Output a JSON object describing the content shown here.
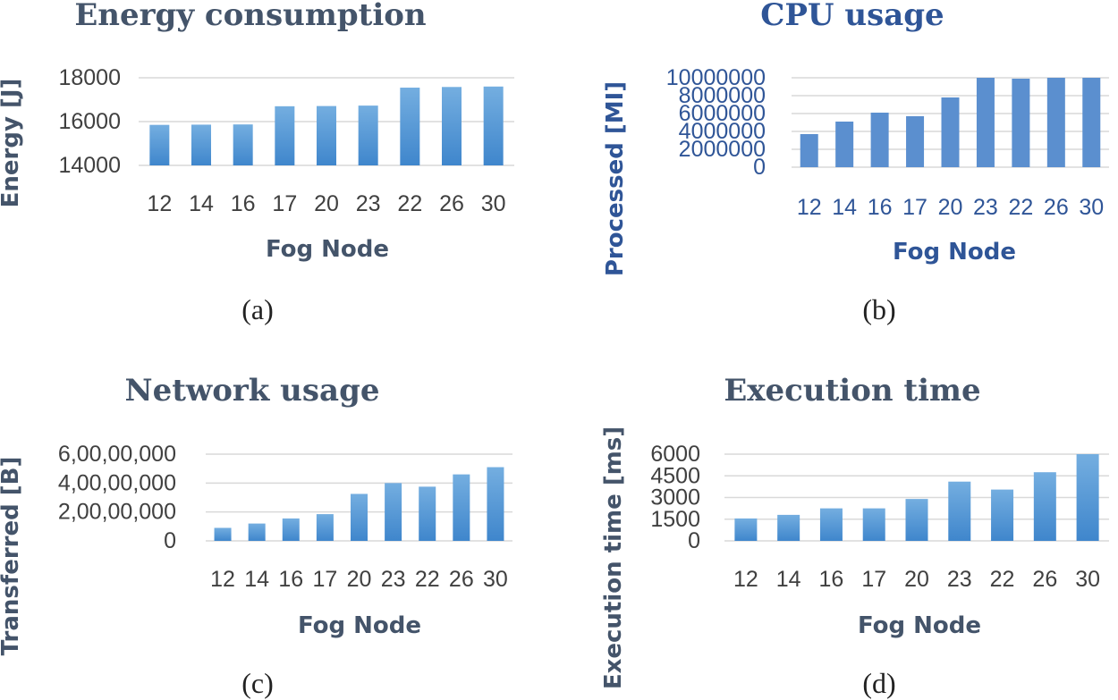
{
  "colors": {
    "bar_top": "#74aee0",
    "bar_bottom": "#3f86cc",
    "bar_solid": "#5b8fcf",
    "grid": "#d9d9d9"
  },
  "chart_data": [
    {
      "id": "energy",
      "type": "bar",
      "title": "Energy consumption",
      "xlabel": "Fog Node",
      "ylabel": "Energy [J]",
      "caption": "(a)",
      "categories": [
        "12",
        "14",
        "16",
        "17",
        "20",
        "23",
        "22",
        "26",
        "30"
      ],
      "values": [
        15850,
        15860,
        15870,
        16700,
        16710,
        16730,
        17550,
        17580,
        17600
      ],
      "ylim": [
        14000,
        18000
      ],
      "yticks": [
        14000,
        16000,
        18000
      ],
      "ytick_labels": [
        "14000",
        "16000",
        "18000"
      ],
      "grid": true
    },
    {
      "id": "cpu",
      "type": "bar",
      "title": "CPU usage",
      "xlabel": "Fog Node",
      "ylabel": "Processed [MI]",
      "caption": "(b)",
      "categories": [
        "12",
        "14",
        "16",
        "17",
        "20",
        "23",
        "22",
        "26",
        "30"
      ],
      "values": [
        3700000,
        5100000,
        6100000,
        5700000,
        7800000,
        10000000,
        9900000,
        10000000,
        10000000
      ],
      "ylim": [
        0,
        10000000
      ],
      "yticks": [
        0,
        2000000,
        4000000,
        6000000,
        8000000,
        10000000
      ],
      "ytick_labels": [
        "0",
        "2000000",
        "4000000",
        "6000000",
        "8000000",
        "10000000"
      ],
      "grid": true
    },
    {
      "id": "network",
      "type": "bar",
      "title": "Network usage",
      "xlabel": "Fog Node",
      "ylabel": "Transferred [B]",
      "caption": "(c)",
      "categories": [
        "12",
        "14",
        "16",
        "17",
        "20",
        "23",
        "22",
        "26",
        "30"
      ],
      "values": [
        9000000,
        12000000,
        15500000,
        18500000,
        32500000,
        40000000,
        37500000,
        46000000,
        51000000
      ],
      "ylim": [
        0,
        60000000
      ],
      "yticks": [
        0,
        20000000,
        40000000,
        60000000
      ],
      "ytick_labels": [
        "0",
        "2,00,00,000",
        "4,00,00,000",
        "6,00,00,000"
      ],
      "grid": true
    },
    {
      "id": "exec",
      "type": "bar",
      "title": "Execution time",
      "xlabel": "Fog Node",
      "ylabel": "Execution time [ms]",
      "caption": "(d)",
      "categories": [
        "12",
        "14",
        "16",
        "17",
        "20",
        "23",
        "22",
        "26",
        "30"
      ],
      "values": [
        1550,
        1800,
        2250,
        2250,
        2900,
        4100,
        3550,
        4750,
        6050
      ],
      "ylim": [
        0,
        6000
      ],
      "yticks": [
        0,
        1500,
        3000,
        4500,
        6000
      ],
      "ytick_labels": [
        "0",
        "1500",
        "3000",
        "4500",
        "6000"
      ],
      "grid": true
    }
  ]
}
